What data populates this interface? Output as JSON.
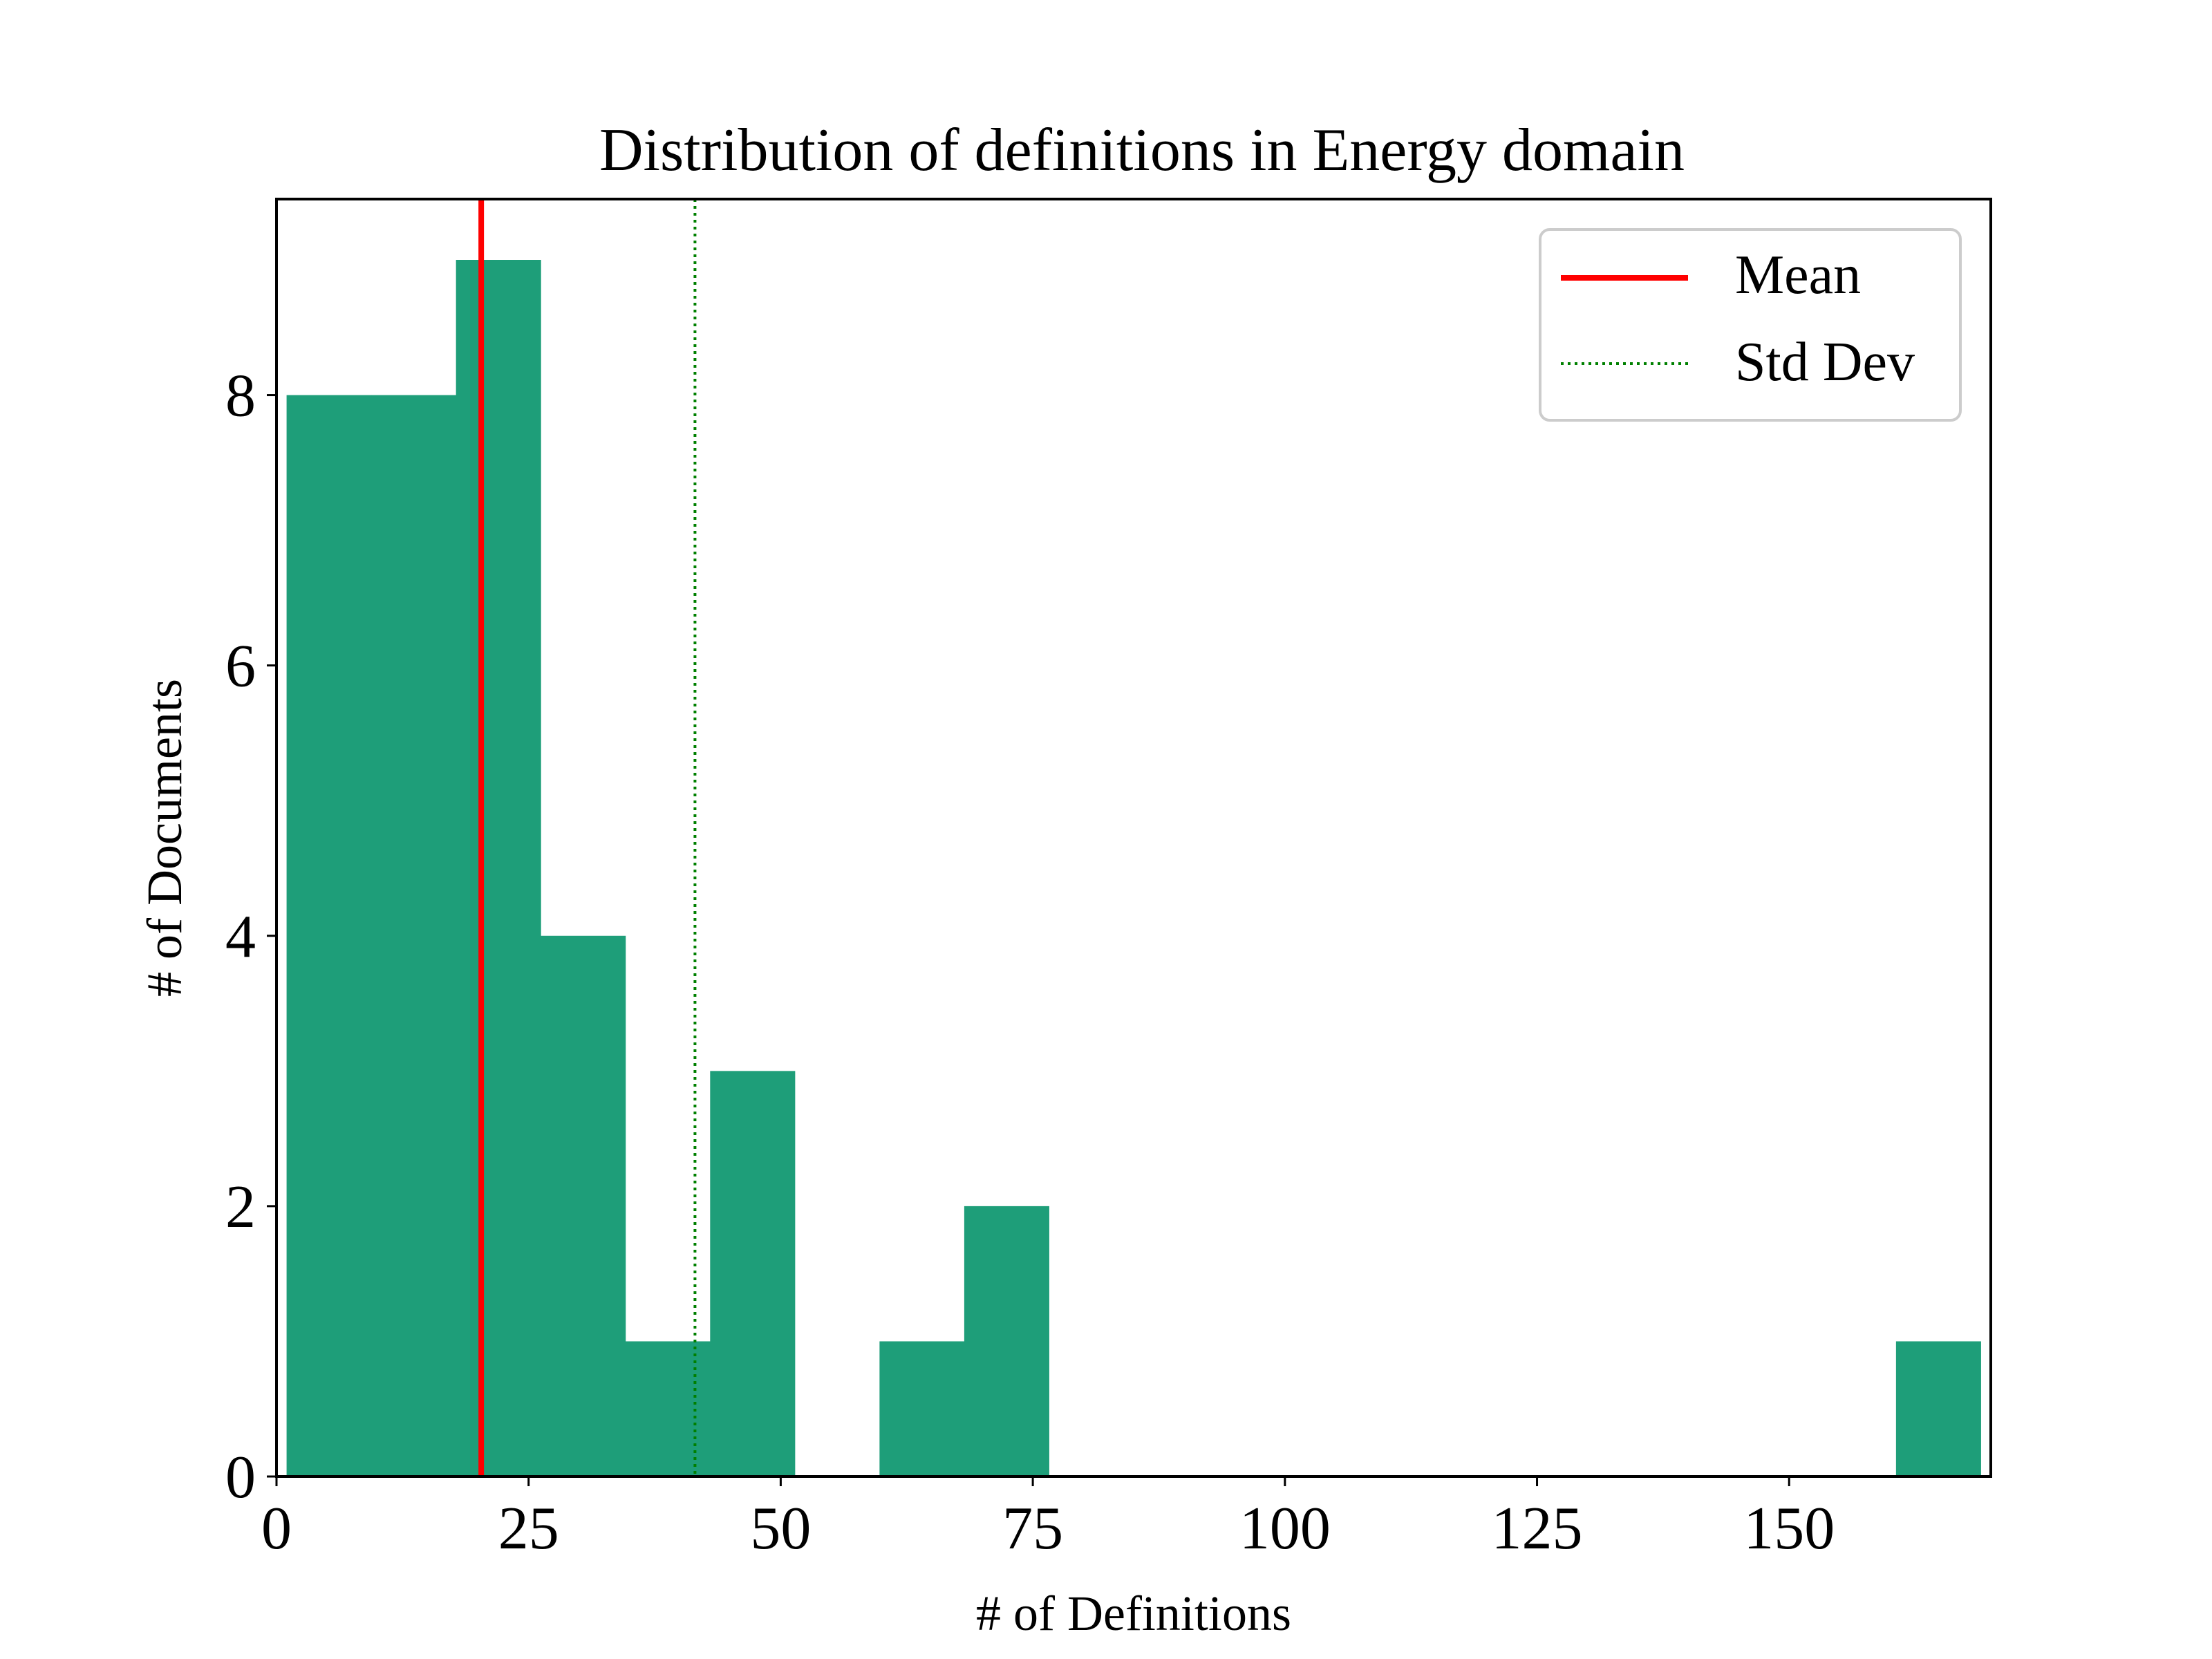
{
  "chart_data": {
    "type": "bar",
    "title": "Distribution of definitions in Energy domain",
    "xlabel": "# of Definitions",
    "ylabel": "# of Documents",
    "xlim": [
      0,
      170
    ],
    "ylim": [
      0,
      9.45
    ],
    "xticks": [
      0,
      25,
      50,
      75,
      100,
      125,
      150
    ],
    "yticks": [
      0,
      2,
      4,
      6,
      8
    ],
    "bins": [
      {
        "x0": 1.0,
        "x1": 9.4,
        "count": 8
      },
      {
        "x0": 9.4,
        "x1": 17.8,
        "count": 8
      },
      {
        "x0": 17.8,
        "x1": 26.2,
        "count": 9
      },
      {
        "x0": 26.2,
        "x1": 34.6,
        "count": 4
      },
      {
        "x0": 34.6,
        "x1": 43.0,
        "count": 1
      },
      {
        "x0": 43.0,
        "x1": 51.4,
        "count": 3
      },
      {
        "x0": 51.4,
        "x1": 59.8,
        "count": 0
      },
      {
        "x0": 59.8,
        "x1": 68.2,
        "count": 1
      },
      {
        "x0": 68.2,
        "x1": 76.6,
        "count": 2
      },
      {
        "x0": 76.6,
        "x1": 85.0,
        "count": 0
      },
      {
        "x0": 85.0,
        "x1": 93.4,
        "count": 0
      },
      {
        "x0": 93.4,
        "x1": 101.8,
        "count": 0
      },
      {
        "x0": 101.8,
        "x1": 110.2,
        "count": 0
      },
      {
        "x0": 110.2,
        "x1": 118.6,
        "count": 0
      },
      {
        "x0": 118.6,
        "x1": 127.0,
        "count": 0
      },
      {
        "x0": 127.0,
        "x1": 135.4,
        "count": 0
      },
      {
        "x0": 135.4,
        "x1": 143.8,
        "count": 0
      },
      {
        "x0": 143.8,
        "x1": 152.2,
        "count": 0
      },
      {
        "x0": 152.2,
        "x1": 160.6,
        "count": 0
      },
      {
        "x0": 160.6,
        "x1": 169.0,
        "count": 1
      }
    ],
    "lines": [
      {
        "name": "Mean",
        "x": 20.3,
        "color": "#ff0000",
        "style": "solid"
      },
      {
        "name": "Std Dev",
        "x": 41.5,
        "color": "#008000",
        "style": "dotted"
      }
    ],
    "bar_color": "#1e9e79",
    "legend": "top-right",
    "grid": false
  }
}
